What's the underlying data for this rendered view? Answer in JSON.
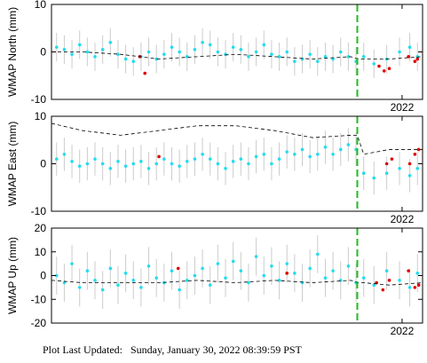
{
  "chart_data": [
    {
      "type": "scatter",
      "ylabel": "WMAP North (mm)",
      "xlim": [
        2019.26,
        2022.16
      ],
      "xticks": [
        2022
      ],
      "ylim": [
        -10,
        10
      ],
      "yticks": [
        10,
        0,
        -10
      ],
      "break_x": 2021.65,
      "break_color": "#22bb22",
      "series": [
        {
          "color": "#22ddee",
          "error_color": "#cccccc",
          "error": 3,
          "x": [
            2019.3,
            2019.36,
            2019.42,
            2019.48,
            2019.54,
            2019.6,
            2019.66,
            2019.72,
            2019.78,
            2019.84,
            2019.9,
            2019.96,
            2020.02,
            2020.08,
            2020.14,
            2020.2,
            2020.26,
            2020.32,
            2020.38,
            2020.44,
            2020.5,
            2020.56,
            2020.62,
            2020.68,
            2020.74,
            2020.8,
            2020.86,
            2020.92,
            2020.98,
            2021.04,
            2021.1,
            2021.16,
            2021.22,
            2021.28,
            2021.34,
            2021.4,
            2021.46,
            2021.52,
            2021.58,
            2021.64,
            2021.7,
            2021.78,
            2021.88,
            2021.98,
            2022.06,
            2022.12
          ],
          "values": [
            1,
            0.5,
            -0.5,
            1.5,
            0,
            -1,
            0.5,
            2,
            -0.5,
            -1.5,
            -2,
            -1,
            0,
            -1.5,
            -0.5,
            1,
            0,
            -1,
            0.5,
            2,
            1.5,
            0,
            -0.5,
            1,
            0.5,
            -1,
            0,
            1.5,
            -0.5,
            -1,
            0,
            -2,
            -1.5,
            -0.5,
            -2,
            -1,
            -1.5,
            0,
            -1,
            -2,
            -1,
            -2.5,
            -1.5,
            0,
            1,
            -1
          ]
        },
        {
          "color": "#e00000",
          "x": [
            2019.95,
            2019.99,
            2021.82,
            2021.86,
            2021.9,
            2022.05,
            2022.1,
            2022.12
          ],
          "values": [
            -1,
            -4.5,
            -3,
            -4,
            -3.5,
            -1,
            -2,
            -1.5
          ]
        },
        {
          "color": "#000000",
          "line_style": "dashed",
          "x": [
            2019.26,
            2019.5,
            2019.8,
            2020.1,
            2020.4,
            2020.7,
            2021.0,
            2021.3,
            2021.6,
            2021.65,
            2021.7,
            2021.9,
            2022.16
          ],
          "values": [
            0,
            0,
            -0.5,
            -1.5,
            -1,
            -0.5,
            -1,
            -1.5,
            -1,
            -1.5,
            -1.5,
            -1.5,
            -1
          ]
        }
      ]
    },
    {
      "type": "scatter",
      "ylabel": "WMAP East (mm)",
      "xlim": [
        2019.26,
        2022.16
      ],
      "xticks": [
        2022
      ],
      "ylim": [
        -10,
        10
      ],
      "yticks": [
        10,
        0,
        -10
      ],
      "break_x": 2021.65,
      "break_color": "#22bb22",
      "series": [
        {
          "color": "#22ddee",
          "error_color": "#cccccc",
          "error": 3.5,
          "x": [
            2019.3,
            2019.36,
            2019.42,
            2019.48,
            2019.54,
            2019.6,
            2019.66,
            2019.72,
            2019.78,
            2019.84,
            2019.9,
            2019.96,
            2020.02,
            2020.08,
            2020.14,
            2020.2,
            2020.26,
            2020.32,
            2020.38,
            2020.44,
            2020.5,
            2020.56,
            2020.62,
            2020.68,
            2020.74,
            2020.8,
            2020.86,
            2020.92,
            2020.98,
            2021.04,
            2021.1,
            2021.16,
            2021.22,
            2021.28,
            2021.34,
            2021.4,
            2021.46,
            2021.52,
            2021.58,
            2021.64,
            2021.7,
            2021.78,
            2021.88,
            2021.98,
            2022.06,
            2022.12
          ],
          "values": [
            1,
            2,
            0.5,
            -0.5,
            0,
            1,
            0,
            -1,
            0.5,
            -0.5,
            0,
            0.5,
            -1,
            0,
            1,
            0,
            -0.5,
            0.5,
            1,
            2,
            1,
            0,
            -1,
            0.5,
            1,
            0,
            1.5,
            2,
            0,
            1,
            2.5,
            2,
            3,
            1.5,
            2,
            3.5,
            2,
            3,
            4,
            3,
            -2,
            -3,
            -2,
            -1,
            -2.5,
            -1
          ]
        },
        {
          "color": "#e00000",
          "x": [
            2020.1,
            2021.88,
            2021.92,
            2022.06,
            2022.1,
            2022.13
          ],
          "values": [
            1.5,
            0,
            1,
            0,
            2,
            3
          ]
        },
        {
          "color": "#000000",
          "line_style": "dashed",
          "x": [
            2019.26,
            2019.5,
            2019.8,
            2020.1,
            2020.4,
            2020.7,
            2021.0,
            2021.3,
            2021.6,
            2021.65,
            2021.7,
            2021.9,
            2022.16
          ],
          "values": [
            8.5,
            7,
            6,
            7,
            8,
            8,
            7,
            5.5,
            6,
            6,
            2,
            3,
            3
          ]
        }
      ]
    },
    {
      "type": "scatter",
      "ylabel": "WMAP Up (mm)",
      "xlim": [
        2019.26,
        2022.16
      ],
      "xticks": [
        2022
      ],
      "ylim": [
        -20,
        20
      ],
      "yticks": [
        20,
        10,
        0,
        -10,
        -20
      ],
      "break_x": 2021.65,
      "break_color": "#22bb22",
      "series": [
        {
          "color": "#22ddee",
          "error_color": "#cccccc",
          "error": 8,
          "x": [
            2019.3,
            2019.36,
            2019.42,
            2019.48,
            2019.54,
            2019.6,
            2019.66,
            2019.72,
            2019.78,
            2019.84,
            2019.9,
            2019.96,
            2020.02,
            2020.08,
            2020.14,
            2020.2,
            2020.26,
            2020.32,
            2020.38,
            2020.44,
            2020.5,
            2020.56,
            2020.62,
            2020.68,
            2020.74,
            2020.8,
            2020.86,
            2020.92,
            2020.98,
            2021.04,
            2021.1,
            2021.16,
            2021.22,
            2021.28,
            2021.34,
            2021.4,
            2021.46,
            2021.52,
            2021.58,
            2021.64,
            2021.7,
            2021.78,
            2021.88,
            2021.98,
            2022.06,
            2022.12
          ],
          "values": [
            0,
            -3,
            5,
            -5,
            2,
            -2,
            -6,
            3,
            -4,
            1,
            -2,
            -5,
            4,
            -1,
            -3,
            2,
            -6,
            -2,
            0,
            3,
            -4,
            5,
            -1,
            6,
            2,
            -3,
            8,
            0,
            4,
            -2,
            5,
            1,
            -3,
            3,
            9,
            -1,
            2,
            -2,
            4,
            -3,
            -1,
            -4,
            2,
            -2,
            -5,
            1
          ]
        },
        {
          "color": "#e00000",
          "x": [
            2020.25,
            2021.1,
            2021.8,
            2021.85,
            2021.9,
            2022.05,
            2022.1,
            2022.13
          ],
          "values": [
            3,
            1,
            -3,
            -6,
            -2,
            2,
            -5,
            -4
          ]
        },
        {
          "color": "#000000",
          "line_style": "dashed",
          "x": [
            2019.26,
            2019.5,
            2019.8,
            2020.1,
            2020.4,
            2020.7,
            2021.0,
            2021.3,
            2021.6,
            2021.65,
            2021.7,
            2021.9,
            2022.16
          ],
          "values": [
            -2,
            -3,
            -3,
            -3,
            -2,
            -3,
            -2,
            -3,
            -2,
            -3,
            -3,
            -4,
            -3
          ]
        }
      ]
    }
  ],
  "footer": "Plot Last Updated:   Sunday, January 30, 2022 08:39:59 PST"
}
